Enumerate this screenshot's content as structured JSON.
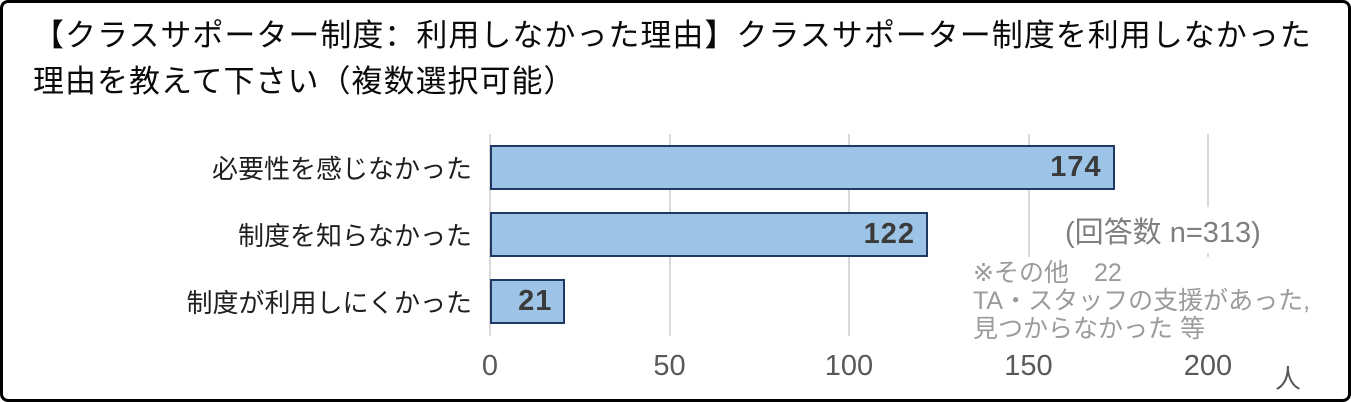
{
  "window": {
    "background": "#FFFFFF",
    "frame_border_color": "#000000"
  },
  "title": "【クラスサポーター制度：利用しなかった理由】クラスサポーター制度を利用しなかった理由を教えて下さい（複数選択可能）",
  "chart_data": {
    "type": "bar",
    "orientation": "horizontal",
    "categories": [
      "必要性を感じなかった",
      "制度を知らなかった",
      "制度が利用しにくかった"
    ],
    "values": [
      174,
      122,
      21
    ],
    "value_labels_position": "inside-end",
    "xlim": [
      0,
      200
    ],
    "x_ticks": [
      0,
      50,
      100,
      150,
      200
    ],
    "x_unit": "人",
    "grid": true,
    "legend": "none",
    "annotations": {
      "response_count": "(回答数 n=313)",
      "note_line1": "※その他　22",
      "note_line2": "TA・スタッフの支援があった,",
      "note_line3": "見つからなかった 等"
    },
    "colors": {
      "bar_fill": "#9DC3E6",
      "bar_border": "#1F3864",
      "gridline": "#D9D9D9",
      "tick_label": "#595959",
      "value_label": "#3A3A3A",
      "category_label": "#1F1F1F",
      "annotation": "#7F7F7F",
      "note": "#9B9B9B"
    }
  }
}
